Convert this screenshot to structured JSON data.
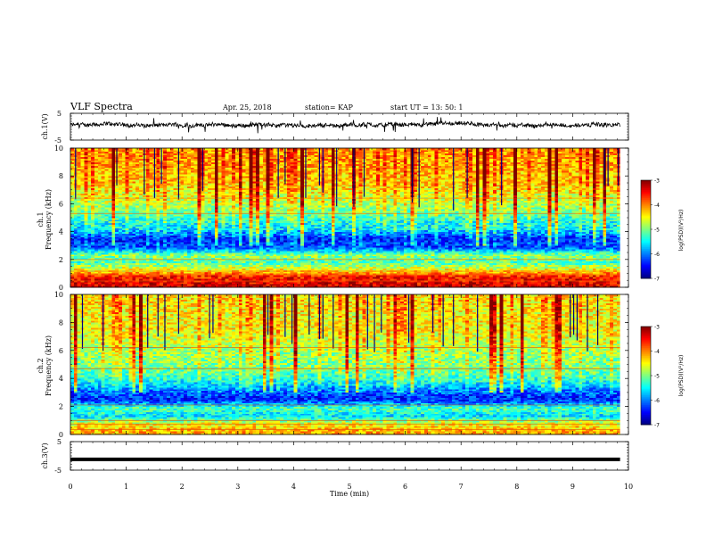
{
  "header": {
    "title": "VLF Spectra",
    "date": "Apr. 25, 2018",
    "station": "station= KAP",
    "start": "start  UT  =   13: 50: 1"
  },
  "chart_data": [
    {
      "type": "line",
      "panel": "ch1-waveform",
      "ylabel": "ch.1(V)",
      "ylim": [
        -5,
        5
      ],
      "yticks": [
        "5",
        "-5"
      ],
      "x_range_min": [
        0,
        9.85
      ],
      "series_description": "noisy waveform around ~0.5 V with small fluctuations"
    },
    {
      "type": "heatmap",
      "panel": "ch1-spectrogram",
      "ylabel_line1": "ch.1",
      "ylabel_line2": "Frequency (kHz)",
      "ylim": [
        0,
        10
      ],
      "yticks": [
        "0",
        "2",
        "4",
        "6",
        "8",
        "10"
      ],
      "colorbar": {
        "label": "log(PSD)(V²/Hz)",
        "range": [
          -7,
          -3
        ],
        "ticks": [
          "-3",
          "-4",
          "-5",
          "-6",
          "-7"
        ]
      },
      "band_profile": [
        {
          "f": 0.3,
          "v": -3.4
        },
        {
          "f": 0.8,
          "v": -3.6
        },
        {
          "f": 1.2,
          "v": -4.4
        },
        {
          "f": 1.8,
          "v": -5.2
        },
        {
          "f": 2.3,
          "v": -4.9
        },
        {
          "f": 2.9,
          "v": -6.2
        },
        {
          "f": 3.5,
          "v": -6.4
        },
        {
          "f": 4.2,
          "v": -5.6
        },
        {
          "f": 5.0,
          "v": -5.3
        },
        {
          "f": 5.7,
          "v": -4.9
        },
        {
          "f": 6.5,
          "v": -4.6
        },
        {
          "f": 7.5,
          "v": -4.3
        },
        {
          "f": 8.5,
          "v": -4.2
        },
        {
          "f": 9.5,
          "v": -4.1
        }
      ]
    },
    {
      "type": "heatmap",
      "panel": "ch2-spectrogram",
      "ylabel_line1": "ch.2",
      "ylabel_line2": "Frequency (kHz)",
      "ylim": [
        0,
        10
      ],
      "yticks": [
        "0",
        "2",
        "4",
        "6",
        "8",
        "10"
      ],
      "colorbar": {
        "label": "log(PSD)(V²/Hz)",
        "range": [
          -7,
          -3
        ],
        "ticks": [
          "-3",
          "-4",
          "-5",
          "-6",
          "-7"
        ]
      },
      "band_profile": [
        {
          "f": 0.3,
          "v": -4.2
        },
        {
          "f": 0.8,
          "v": -4.6
        },
        {
          "f": 1.3,
          "v": -5.6
        },
        {
          "f": 1.9,
          "v": -5.2
        },
        {
          "f": 2.5,
          "v": -6.4
        },
        {
          "f": 3.2,
          "v": -6.0
        },
        {
          "f": 4.0,
          "v": -5.3
        },
        {
          "f": 4.8,
          "v": -5.0
        },
        {
          "f": 5.6,
          "v": -4.9
        },
        {
          "f": 6.5,
          "v": -4.7
        },
        {
          "f": 7.5,
          "v": -4.5
        },
        {
          "f": 8.5,
          "v": -4.5
        },
        {
          "f": 9.5,
          "v": -4.4
        }
      ]
    },
    {
      "type": "line",
      "panel": "ch3-waveform",
      "ylabel": "ch.3(V)",
      "ylim": [
        -5,
        5
      ],
      "yticks": [
        "5",
        "-5"
      ],
      "series_description": "flat thick line at about -1.2 V"
    }
  ],
  "xaxis": {
    "label": "Time  (min)",
    "range": [
      0,
      10
    ],
    "ticks": [
      "0",
      "1",
      "2",
      "3",
      "4",
      "5",
      "6",
      "7",
      "8",
      "9",
      "10"
    ]
  }
}
